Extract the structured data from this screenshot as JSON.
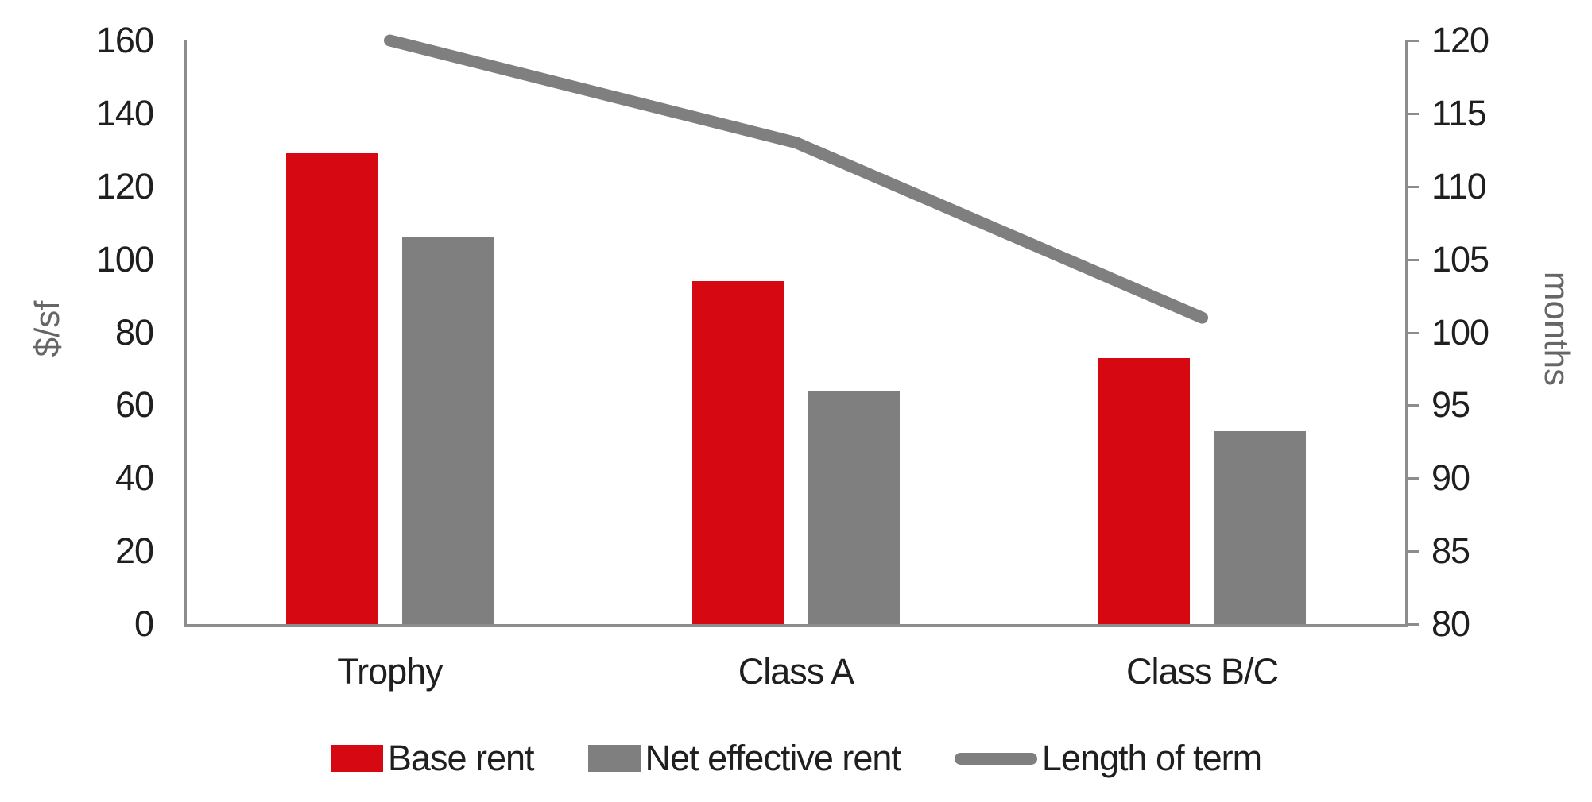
{
  "chart_data": {
    "type": "bar",
    "subtype": "grouped-bar-with-line-combo",
    "title": "",
    "categories": [
      "Trophy",
      "Class A",
      "Class B/C"
    ],
    "series": [
      {
        "name": "Base rent",
        "type": "bar",
        "axis": "left",
        "color": "#d60812",
        "values": [
          129,
          94,
          73
        ]
      },
      {
        "name": "Net effective rent",
        "type": "bar",
        "axis": "left",
        "color": "#7f7f7f",
        "values": [
          106,
          64,
          53
        ]
      },
      {
        "name": "Length of term",
        "type": "line",
        "axis": "right",
        "color": "#7f7f7f",
        "values": [
          120,
          113,
          101
        ]
      }
    ],
    "left_axis": {
      "title": "$/sf",
      "min": 0,
      "max": 160,
      "step": 20,
      "ticks": [
        0,
        20,
        40,
        60,
        80,
        100,
        120,
        140,
        160
      ]
    },
    "right_axis": {
      "title": "months",
      "min": 80,
      "max": 120,
      "step": 5,
      "ticks": [
        80,
        85,
        90,
        95,
        100,
        105,
        110,
        115,
        120
      ]
    },
    "legend_position": "bottom",
    "grid": false,
    "axis_color": "#8c8c8c",
    "tick_text_color": "#1f1f1f",
    "axis_title_color": "#666666"
  }
}
